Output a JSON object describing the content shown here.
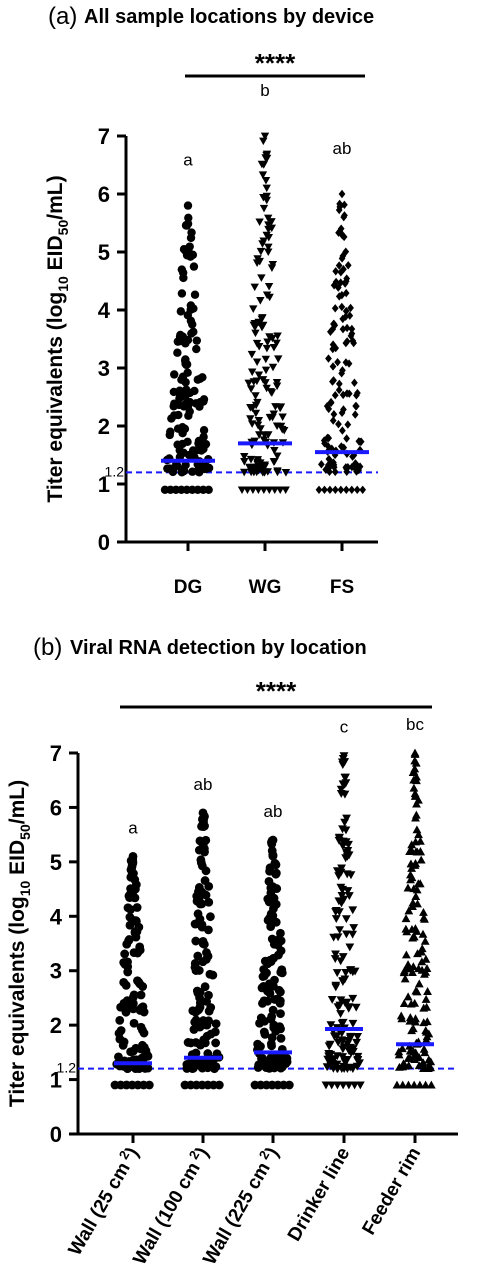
{
  "chart_data": [
    {
      "type": "scatter",
      "panel_label": "(a)",
      "title": "All sample locations by device",
      "significance": "****",
      "ylabel": "Titer equivalents (log10 EID50/mL)",
      "ylabel_parts": [
        "Titer equivalents (log",
        "10",
        " EID",
        "50",
        "/mL)"
      ],
      "ylim": [
        0,
        7
      ],
      "yticks": [
        "0",
        "1",
        "2",
        "3",
        "4",
        "5",
        "6",
        "7"
      ],
      "reference_line": {
        "value": 1.2,
        "label": "1.2",
        "style": "dashed",
        "color": "#1a1aff"
      },
      "lod_value": 0.9,
      "mean_color": "#1a1aff",
      "categories": [
        "DG",
        "WG",
        "FS"
      ],
      "series": [
        {
          "category": "DG",
          "marker": "circle",
          "letter": "a",
          "mean": 1.4,
          "max": 5.8
        },
        {
          "category": "WG",
          "marker": "triangle-down",
          "letter": "b",
          "mean": 1.7,
          "max": 7.0
        },
        {
          "category": "FS",
          "marker": "diamond",
          "letter": "ab",
          "mean": 1.55,
          "max": 6.0
        }
      ]
    },
    {
      "type": "scatter",
      "panel_label": "(b)",
      "title": "Viral RNA detection by location",
      "significance": "****",
      "ylabel": "Titer equivalents (log10 EID50/mL)",
      "ylabel_parts": [
        "Titer equivalents (log",
        "10",
        " EID",
        "50",
        "/mL)"
      ],
      "ylim": [
        0,
        7
      ],
      "yticks": [
        "0",
        "1",
        "2",
        "3",
        "4",
        "5",
        "6",
        "7"
      ],
      "reference_line": {
        "value": 1.2,
        "label": "1.2",
        "style": "dashed",
        "color": "#1a1aff"
      },
      "lod_value": 0.9,
      "mean_color": "#1a1aff",
      "categories": [
        "Wall (25 cm2)",
        "Wall (100 cm2)",
        "Wall (225 cm2)",
        "Drinker line",
        "Feeder rim"
      ],
      "category_labels": [
        {
          "main": "Wall (25 cm",
          "sup": "2",
          "end": ")"
        },
        {
          "main": "Wall (100 cm",
          "sup": "2",
          "end": ")"
        },
        {
          "main": "Wall (225 cm",
          "sup": "2",
          "end": ")"
        },
        {
          "main": "Drinker line",
          "sup": "",
          "end": ""
        },
        {
          "main": "Feeder rim",
          "sup": "",
          "end": ""
        }
      ],
      "series": [
        {
          "category": "Wall (25 cm2)",
          "marker": "circle",
          "letter": "a",
          "mean": 1.3,
          "max": 5.1
        },
        {
          "category": "Wall (100 cm2)",
          "marker": "circle",
          "letter": "ab",
          "mean": 1.4,
          "max": 5.9
        },
        {
          "category": "Wall (225 cm2)",
          "marker": "circle",
          "letter": "ab",
          "mean": 1.5,
          "max": 5.4
        },
        {
          "category": "Drinker line",
          "marker": "triangle-down",
          "letter": "c",
          "mean": 1.93,
          "max": 6.95
        },
        {
          "category": "Feeder rim",
          "marker": "triangle-up",
          "letter": "bc",
          "mean": 1.65,
          "max": 7.0
        }
      ]
    }
  ]
}
